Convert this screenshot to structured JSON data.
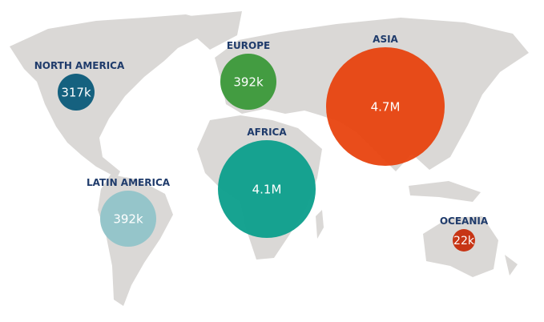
{
  "regions": [
    {
      "name": "NORTH AMERICA",
      "value": 317000,
      "value_label": "317k",
      "color": "#0e5d7c"
    },
    {
      "name": "EUROPE",
      "value": 392000,
      "value_label": "392k",
      "color": "#3e9a3c"
    },
    {
      "name": "ASIA",
      "value": 4700000,
      "value_label": "4.7M",
      "color": "#e8430f"
    },
    {
      "name": "AFRICA",
      "value": 4100000,
      "value_label": "4.1M",
      "color": "#0fa08d"
    },
    {
      "name": "LATIN AMERICA",
      "value": 392000,
      "value_label": "392k",
      "color": "#93c4c9"
    },
    {
      "name": "OCEANIA",
      "value": 22000,
      "value_label": "22k",
      "color": "#c62f0e"
    }
  ]
}
